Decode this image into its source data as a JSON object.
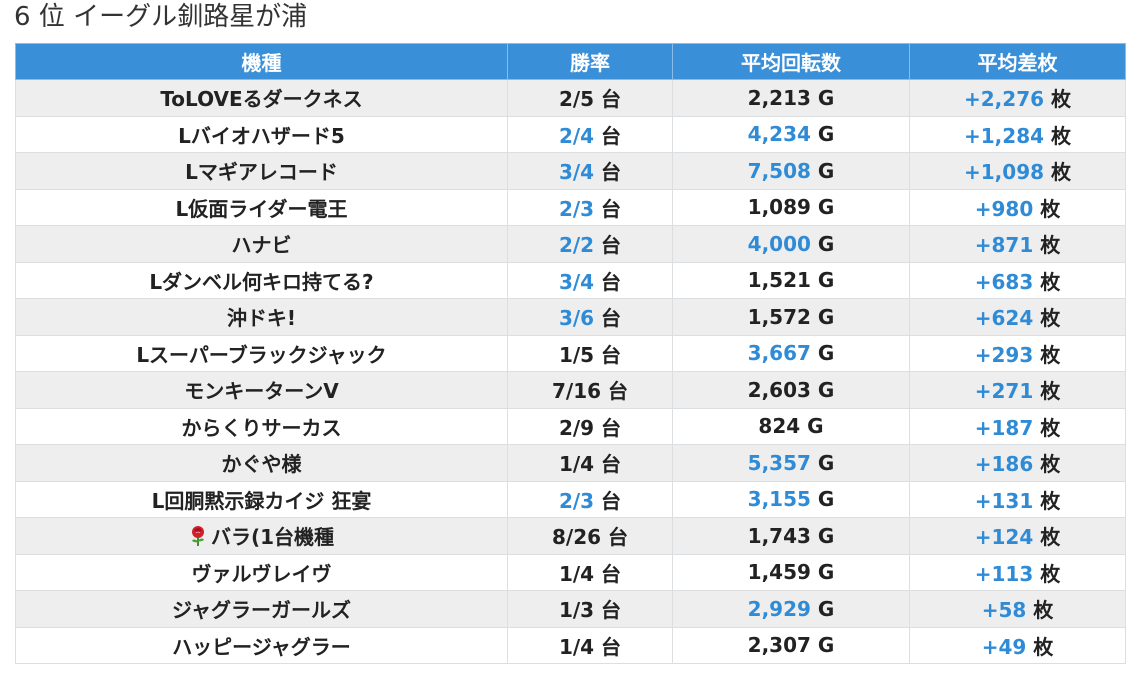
{
  "title": "6 位 イーグル釧路星が浦",
  "headers": [
    "機種",
    "勝率",
    "平均回転数",
    "平均差枚"
  ],
  "colors": {
    "header_bg": "#3a8fd9",
    "highlight": "#2f8bd6",
    "row_alt": "#eeeeee"
  },
  "rows": [
    {
      "name": "ToLOVEるダークネス",
      "icon": "",
      "win": "2/5",
      "win_unit": "台",
      "win_hl": false,
      "spins": "2,213",
      "spins_unit": "G",
      "spins_hl": false,
      "diff": "+2,276",
      "diff_unit": "枚",
      "diff_hl": true
    },
    {
      "name": "Lバイオハザード5",
      "icon": "",
      "win": "2/4",
      "win_unit": "台",
      "win_hl": true,
      "spins": "4,234",
      "spins_unit": "G",
      "spins_hl": true,
      "diff": "+1,284",
      "diff_unit": "枚",
      "diff_hl": true
    },
    {
      "name": "Lマギアレコード",
      "icon": "",
      "win": "3/4",
      "win_unit": "台",
      "win_hl": true,
      "spins": "7,508",
      "spins_unit": "G",
      "spins_hl": true,
      "diff": "+1,098",
      "diff_unit": "枚",
      "diff_hl": true
    },
    {
      "name": "L仮面ライダー電王",
      "icon": "",
      "win": "2/3",
      "win_unit": "台",
      "win_hl": true,
      "spins": "1,089",
      "spins_unit": "G",
      "spins_hl": false,
      "diff": "+980",
      "diff_unit": "枚",
      "diff_hl": true
    },
    {
      "name": "ハナビ",
      "icon": "",
      "win": "2/2",
      "win_unit": "台",
      "win_hl": true,
      "spins": "4,000",
      "spins_unit": "G",
      "spins_hl": true,
      "diff": "+871",
      "diff_unit": "枚",
      "diff_hl": true
    },
    {
      "name": "Lダンベル何キロ持てる?",
      "icon": "",
      "win": "3/4",
      "win_unit": "台",
      "win_hl": true,
      "spins": "1,521",
      "spins_unit": "G",
      "spins_hl": false,
      "diff": "+683",
      "diff_unit": "枚",
      "diff_hl": true
    },
    {
      "name": "沖ドキ!",
      "icon": "",
      "win": "3/6",
      "win_unit": "台",
      "win_hl": true,
      "spins": "1,572",
      "spins_unit": "G",
      "spins_hl": false,
      "diff": "+624",
      "diff_unit": "枚",
      "diff_hl": true
    },
    {
      "name": "Lスーパーブラックジャック",
      "icon": "",
      "win": "1/5",
      "win_unit": "台",
      "win_hl": false,
      "spins": "3,667",
      "spins_unit": "G",
      "spins_hl": true,
      "diff": "+293",
      "diff_unit": "枚",
      "diff_hl": true
    },
    {
      "name": "モンキーターンV",
      "icon": "",
      "win": "7/16",
      "win_unit": "台",
      "win_hl": false,
      "spins": "2,603",
      "spins_unit": "G",
      "spins_hl": false,
      "diff": "+271",
      "diff_unit": "枚",
      "diff_hl": true
    },
    {
      "name": "からくりサーカス",
      "icon": "",
      "win": "2/9",
      "win_unit": "台",
      "win_hl": false,
      "spins": "824",
      "spins_unit": "G",
      "spins_hl": false,
      "diff": "+187",
      "diff_unit": "枚",
      "diff_hl": true
    },
    {
      "name": "かぐや様",
      "icon": "",
      "win": "1/4",
      "win_unit": "台",
      "win_hl": false,
      "spins": "5,357",
      "spins_unit": "G",
      "spins_hl": true,
      "diff": "+186",
      "diff_unit": "枚",
      "diff_hl": true
    },
    {
      "name": "L回胴黙示録カイジ 狂宴",
      "icon": "",
      "win": "2/3",
      "win_unit": "台",
      "win_hl": true,
      "spins": "3,155",
      "spins_unit": "G",
      "spins_hl": true,
      "diff": "+131",
      "diff_unit": "枚",
      "diff_hl": true
    },
    {
      "name": "バラ(1台機種",
      "icon": "rose-icon",
      "win": "8/26",
      "win_unit": "台",
      "win_hl": false,
      "spins": "1,743",
      "spins_unit": "G",
      "spins_hl": false,
      "diff": "+124",
      "diff_unit": "枚",
      "diff_hl": true
    },
    {
      "name": "ヴァルヴレイヴ",
      "icon": "",
      "win": "1/4",
      "win_unit": "台",
      "win_hl": false,
      "spins": "1,459",
      "spins_unit": "G",
      "spins_hl": false,
      "diff": "+113",
      "diff_unit": "枚",
      "diff_hl": true
    },
    {
      "name": "ジャグラーガールズ",
      "icon": "",
      "win": "1/3",
      "win_unit": "台",
      "win_hl": false,
      "spins": "2,929",
      "spins_unit": "G",
      "spins_hl": true,
      "diff": "+58",
      "diff_unit": "枚",
      "diff_hl": true
    },
    {
      "name": "ハッピージャグラー",
      "icon": "",
      "win": "1/4",
      "win_unit": "台",
      "win_hl": false,
      "spins": "2,307",
      "spins_unit": "G",
      "spins_hl": false,
      "diff": "+49",
      "diff_unit": "枚",
      "diff_hl": true
    }
  ]
}
